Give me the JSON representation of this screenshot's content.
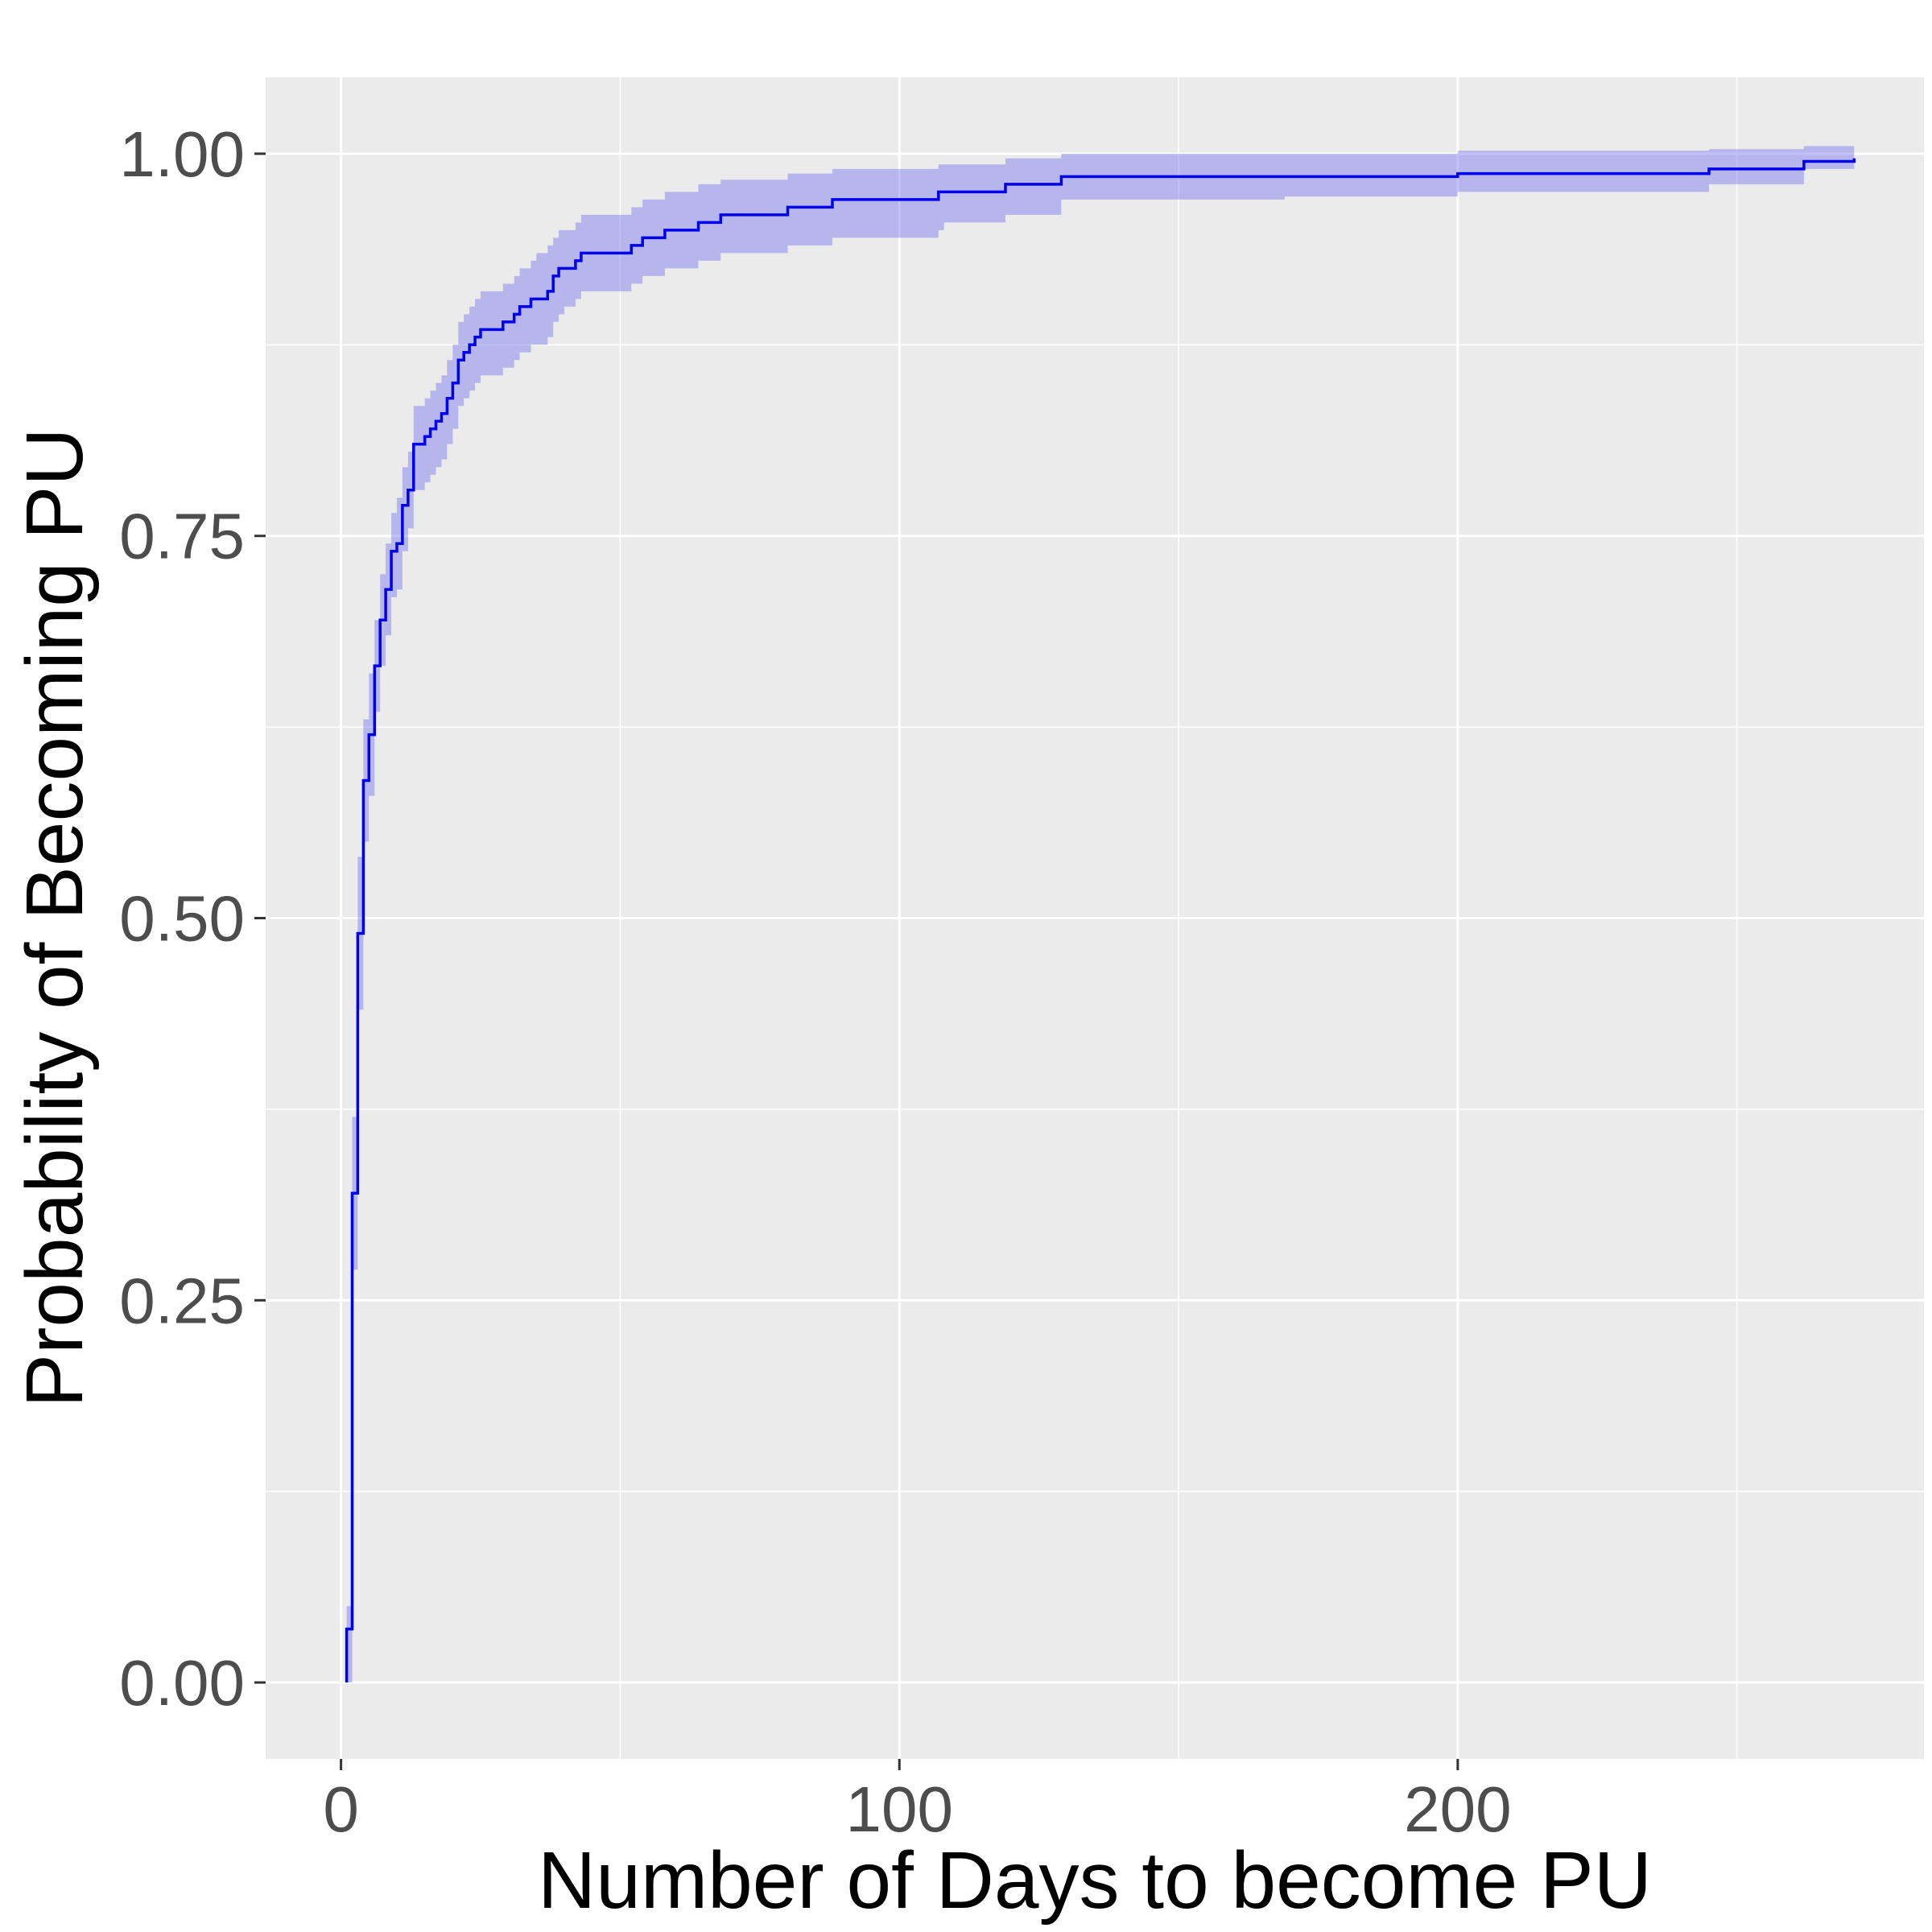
{
  "chart_data": {
    "type": "line",
    "subtype": "step-with-confidence-band",
    "title": "",
    "xlabel": "Number of Days to become PU",
    "ylabel": "Probability of Becoming PU",
    "xlim": [
      -13.5,
      283.5
    ],
    "ylim": [
      -0.05,
      1.05
    ],
    "x_ticks": [
      0,
      100,
      200
    ],
    "x_tick_labels": [
      "0",
      "100",
      "200"
    ],
    "y_ticks": [
      0,
      0.25,
      0.5,
      0.75,
      1
    ],
    "y_tick_labels": [
      "0.00",
      "0.25",
      "0.50",
      "0.75",
      "1.00"
    ],
    "grid": true,
    "colors": {
      "panel_background": "#ebebeb",
      "grid": "#ffffff",
      "line": "#0000ee",
      "band": "#6666ee",
      "tick_label": "#4d4d4d",
      "axis_title": "#000000"
    },
    "series": [
      {
        "style": "step",
        "x": [
          1,
          2,
          3,
          4,
          5,
          6,
          7,
          8,
          9,
          10,
          11,
          12,
          13,
          15,
          16,
          17,
          18,
          19,
          20,
          21,
          22,
          23,
          24,
          25,
          27,
          29,
          31,
          32,
          34,
          35,
          37,
          38,
          39,
          40,
          42,
          43,
          47,
          52,
          54,
          58,
          64,
          68,
          71,
          80,
          88,
          95,
          107,
          108,
          119,
          129,
          169,
          200,
          245,
          262,
          271
        ],
        "y": [
          0.035,
          0.32,
          0.49,
          0.59,
          0.62,
          0.665,
          0.695,
          0.715,
          0.74,
          0.745,
          0.77,
          0.78,
          0.81,
          0.815,
          0.82,
          0.825,
          0.83,
          0.84,
          0.85,
          0.865,
          0.87,
          0.875,
          0.88,
          0.885,
          0.885,
          0.89,
          0.895,
          0.9,
          0.905,
          0.905,
          0.91,
          0.92,
          0.925,
          0.925,
          0.93,
          0.935,
          0.935,
          0.94,
          0.945,
          0.95,
          0.955,
          0.96,
          0.96,
          0.965,
          0.97,
          0.97,
          0.975,
          0.975,
          0.98,
          0.985,
          0.985,
          0.987,
          0.99,
          0.995,
          0.997
        ],
        "lower": [
          0.0,
          0.27,
          0.44,
          0.55,
          0.58,
          0.635,
          0.665,
          0.685,
          0.71,
          0.715,
          0.74,
          0.755,
          0.78,
          0.785,
          0.79,
          0.795,
          0.8,
          0.81,
          0.82,
          0.835,
          0.84,
          0.845,
          0.85,
          0.855,
          0.855,
          0.86,
          0.865,
          0.87,
          0.875,
          0.875,
          0.88,
          0.89,
          0.895,
          0.9,
          0.905,
          0.91,
          0.91,
          0.915,
          0.92,
          0.925,
          0.93,
          0.935,
          0.935,
          0.94,
          0.945,
          0.945,
          0.95,
          0.955,
          0.96,
          0.97,
          0.972,
          0.975,
          0.98,
          0.99,
          0.99
        ],
        "upper": [
          0.05,
          0.37,
          0.54,
          0.63,
          0.66,
          0.695,
          0.725,
          0.745,
          0.765,
          0.775,
          0.795,
          0.805,
          0.835,
          0.84,
          0.845,
          0.85,
          0.855,
          0.865,
          0.875,
          0.89,
          0.895,
          0.9,
          0.905,
          0.91,
          0.91,
          0.915,
          0.92,
          0.925,
          0.93,
          0.935,
          0.94,
          0.945,
          0.95,
          0.95,
          0.955,
          0.96,
          0.96,
          0.965,
          0.97,
          0.975,
          0.98,
          0.983,
          0.983,
          0.987,
          0.99,
          0.99,
          0.993,
          0.993,
          0.997,
          1.0,
          1.0,
          1.002,
          1.003,
          1.005,
          1.005
        ]
      }
    ]
  }
}
